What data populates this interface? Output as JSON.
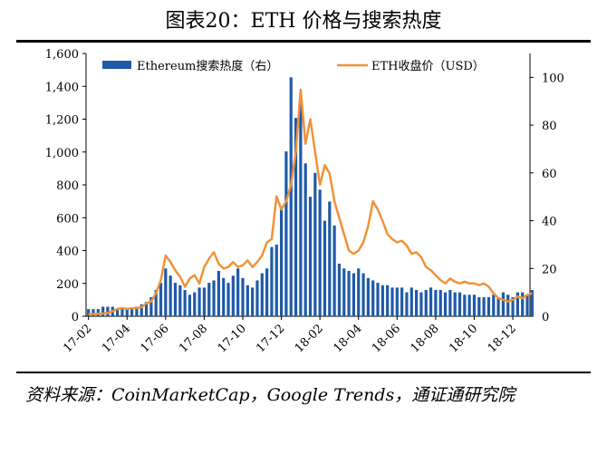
{
  "chart_data": {
    "type": "bar-line",
    "title": "图表20：ETH 价格与搜索热度",
    "source": "资料来源：CoinMarketCap，Google Trends，通证通研究院",
    "categories": [
      "17-02",
      null,
      null,
      null,
      null,
      null,
      null,
      null,
      "17-04",
      null,
      null,
      null,
      null,
      null,
      null,
      null,
      "17-06",
      null,
      null,
      null,
      null,
      null,
      null,
      null,
      "17-08",
      null,
      null,
      null,
      null,
      null,
      null,
      null,
      "17-10",
      null,
      null,
      null,
      null,
      null,
      null,
      null,
      "17-12",
      null,
      null,
      null,
      null,
      null,
      null,
      null,
      "18-02",
      null,
      null,
      null,
      null,
      null,
      null,
      null,
      "18-04",
      null,
      null,
      null,
      null,
      null,
      null,
      null,
      "18-06",
      null,
      null,
      null,
      null,
      null,
      null,
      null,
      "18-08",
      null,
      null,
      null,
      null,
      null,
      null,
      null,
      "18-10",
      null,
      null,
      null,
      null,
      null,
      null,
      null,
      "18-12",
      null,
      null,
      null,
      null
    ],
    "series": [
      {
        "name": "Ethereum搜索热度（右）",
        "color": "#1f5aa8",
        "axis": "y2",
        "values": [
          3,
          3,
          3,
          4,
          4,
          4,
          3,
          3,
          3,
          3,
          4,
          5,
          6,
          8,
          11,
          14,
          20,
          17,
          14,
          13,
          11,
          9,
          10,
          12,
          12,
          14,
          15,
          19,
          16,
          14,
          17,
          20,
          16,
          13,
          12,
          15,
          18,
          20,
          29,
          30,
          46,
          69,
          100,
          83,
          89,
          64,
          50,
          60,
          53,
          40,
          48,
          38,
          22,
          20,
          19,
          18,
          20,
          18,
          16,
          15,
          14,
          13,
          13,
          12,
          12,
          12,
          10,
          12,
          11,
          10,
          11,
          12,
          11,
          11,
          10,
          11,
          10,
          10,
          9,
          9,
          9,
          8,
          8,
          8,
          9,
          8,
          10,
          9,
          8,
          10,
          10,
          9,
          11
        ]
      },
      {
        "name": "ETH收盘价（USD）",
        "color": "#f0923a",
        "axis": "y",
        "values": [
          12,
          13,
          15,
          17,
          20,
          30,
          45,
          50,
          45,
          48,
          50,
          55,
          80,
          90,
          140,
          220,
          370,
          330,
          280,
          240,
          180,
          230,
          250,
          200,
          300,
          350,
          390,
          320,
          290,
          300,
          330,
          300,
          310,
          340,
          300,
          330,
          370,
          450,
          470,
          730,
          650,
          700,
          800,
          1000,
          1380,
          1050,
          1200,
          1000,
          800,
          920,
          870,
          700,
          600,
          500,
          400,
          380,
          400,
          450,
          550,
          700,
          650,
          580,
          500,
          470,
          450,
          460,
          430,
          380,
          390,
          360,
          300,
          280,
          250,
          220,
          200,
          230,
          210,
          200,
          210,
          200,
          200,
          190,
          200,
          180,
          140,
          110,
          100,
          90,
          100,
          120,
          110,
          130,
          140
        ]
      }
    ],
    "ylim": [
      0,
      1600
    ],
    "yticks": [
      0,
      200,
      400,
      600,
      800,
      {
        "value": 1000,
        "label": "1,000"
      },
      {
        "value": 1200,
        "label": "1,200"
      },
      {
        "value": 1400,
        "label": "1,400"
      },
      {
        "value": 1600,
        "label": "1,600"
      }
    ],
    "y2lim": [
      0,
      110
    ],
    "y2ticks": [
      0,
      20,
      40,
      60,
      80,
      100
    ]
  }
}
